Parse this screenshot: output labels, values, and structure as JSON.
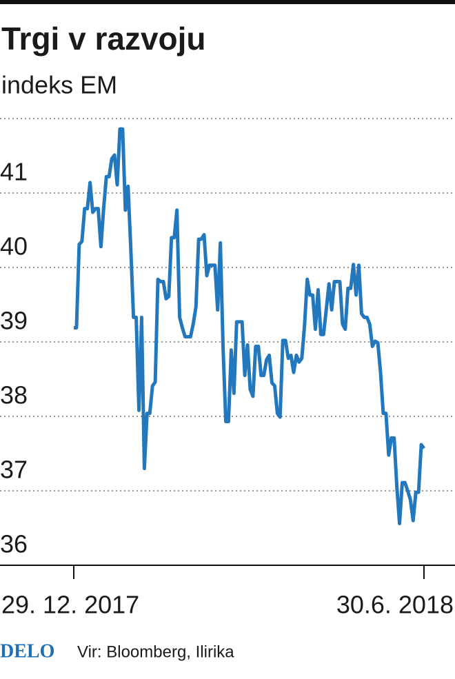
{
  "chart_data": {
    "type": "line",
    "title": "Trgi v razvoju",
    "subtitle": "indeks EM",
    "brand": "DELO",
    "source": "Vir: Bloomberg, Ilirika",
    "color": "#2277bd",
    "ylim": [
      36,
      42
    ],
    "yticks": [
      36,
      37,
      38,
      39,
      40,
      41
    ],
    "grid": true,
    "xlim": [
      0,
      129
    ],
    "xticks": [
      {
        "value": 0,
        "label": "29. 12. 2017"
      },
      {
        "value": 129,
        "label": "30.6. 2018"
      }
    ],
    "values": [
      39.19,
      39.19,
      40.31,
      40.35,
      40.79,
      40.79,
      41.14,
      40.74,
      40.79,
      40.79,
      40.28,
      40.79,
      41.22,
      41.22,
      41.46,
      41.51,
      41.11,
      41.86,
      41.86,
      40.77,
      41.09,
      40.26,
      39.33,
      39.33,
      38.08,
      39.33,
      37.3,
      38.04,
      38.04,
      38.41,
      38.46,
      39.84,
      39.81,
      39.81,
      39.58,
      39.61,
      40.4,
      40.4,
      40.77,
      39.33,
      39.19,
      39.07,
      39.07,
      39.07,
      39.24,
      39.47,
      40.38,
      40.38,
      40.44,
      39.89,
      40.03,
      40.03,
      40.03,
      39.43,
      40.33,
      38.92,
      37.93,
      37.93,
      38.89,
      38.31,
      39.27,
      39.27,
      39.27,
      38.55,
      38.96,
      38.36,
      38.27,
      38.94,
      38.94,
      38.55,
      38.55,
      38.76,
      38.82,
      38.45,
      38.41,
      38.04,
      37.99,
      39.02,
      39.02,
      38.78,
      38.82,
      38.59,
      38.82,
      38.73,
      38.78,
      39.22,
      39.84,
      39.63,
      39.63,
      39.17,
      39.7,
      39.1,
      39.1,
      39.43,
      39.78,
      39.43,
      39.81,
      39.81,
      39.81,
      39.24,
      39.17,
      39.72,
      39.72,
      40.04,
      39.63,
      40.03,
      39.38,
      39.33,
      39.33,
      39.24,
      38.94,
      39.01,
      38.99,
      38.59,
      38.04,
      38.04,
      37.48,
      37.71,
      37.71,
      37.06,
      36.56,
      37.11,
      37.11,
      37.0,
      36.88,
      36.6,
      36.98,
      36.98,
      37.62,
      37.57
    ]
  }
}
